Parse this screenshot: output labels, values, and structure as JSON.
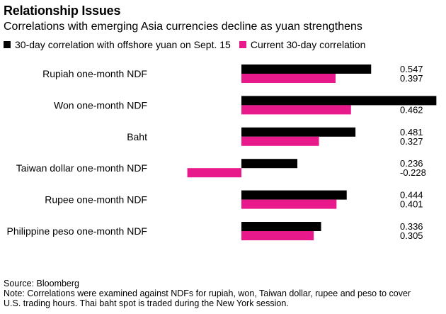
{
  "header": {
    "title": "Relationship Issues",
    "subtitle": "Correlations with emerging Asia currencies decline as yuan strengthens"
  },
  "footer": {
    "source": "Source: Bloomberg",
    "note_line1": "Note: Correlations were examined against NDFs for rupiah, won, Taiwan dollar, rupee and peso to cover",
    "note_line2": "U.S. trading hours. Thai baht spot is traded during the New York session."
  },
  "colors": {
    "series1": "#000000",
    "series2": "#e8198b"
  },
  "chart_data": {
    "type": "bar",
    "orientation": "horizontal",
    "title": "Relationship Issues",
    "subtitle": "Correlations with emerging Asia currencies decline as yuan strengthens",
    "categories": [
      "Rupiah one-month NDF",
      "Won one-month NDF",
      "Baht",
      "Taiwan dollar one-month NDF",
      "Rupee one-month NDF",
      "Philippine peso one-month NDF"
    ],
    "series": [
      {
        "name": "30-day correlation with offshore yuan on Sept. 15",
        "values": [
          0.547,
          0.822,
          0.481,
          0.236,
          0.444,
          0.336
        ],
        "labels": [
          "0.547",
          "",
          "0.481",
          "0.236",
          "0.444",
          "0.336"
        ]
      },
      {
        "name": "Current 30-day correlation",
        "values": [
          0.397,
          0.462,
          0.327,
          -0.228,
          0.401,
          0.305
        ],
        "labels": [
          "0.397",
          "0.462",
          "0.327",
          "-0.228",
          "0.401",
          "0.305"
        ]
      }
    ],
    "xlim": [
      -0.3,
      0.85
    ],
    "xlabel": "",
    "ylabel": "",
    "legend_position": "top-left",
    "grid": false
  }
}
